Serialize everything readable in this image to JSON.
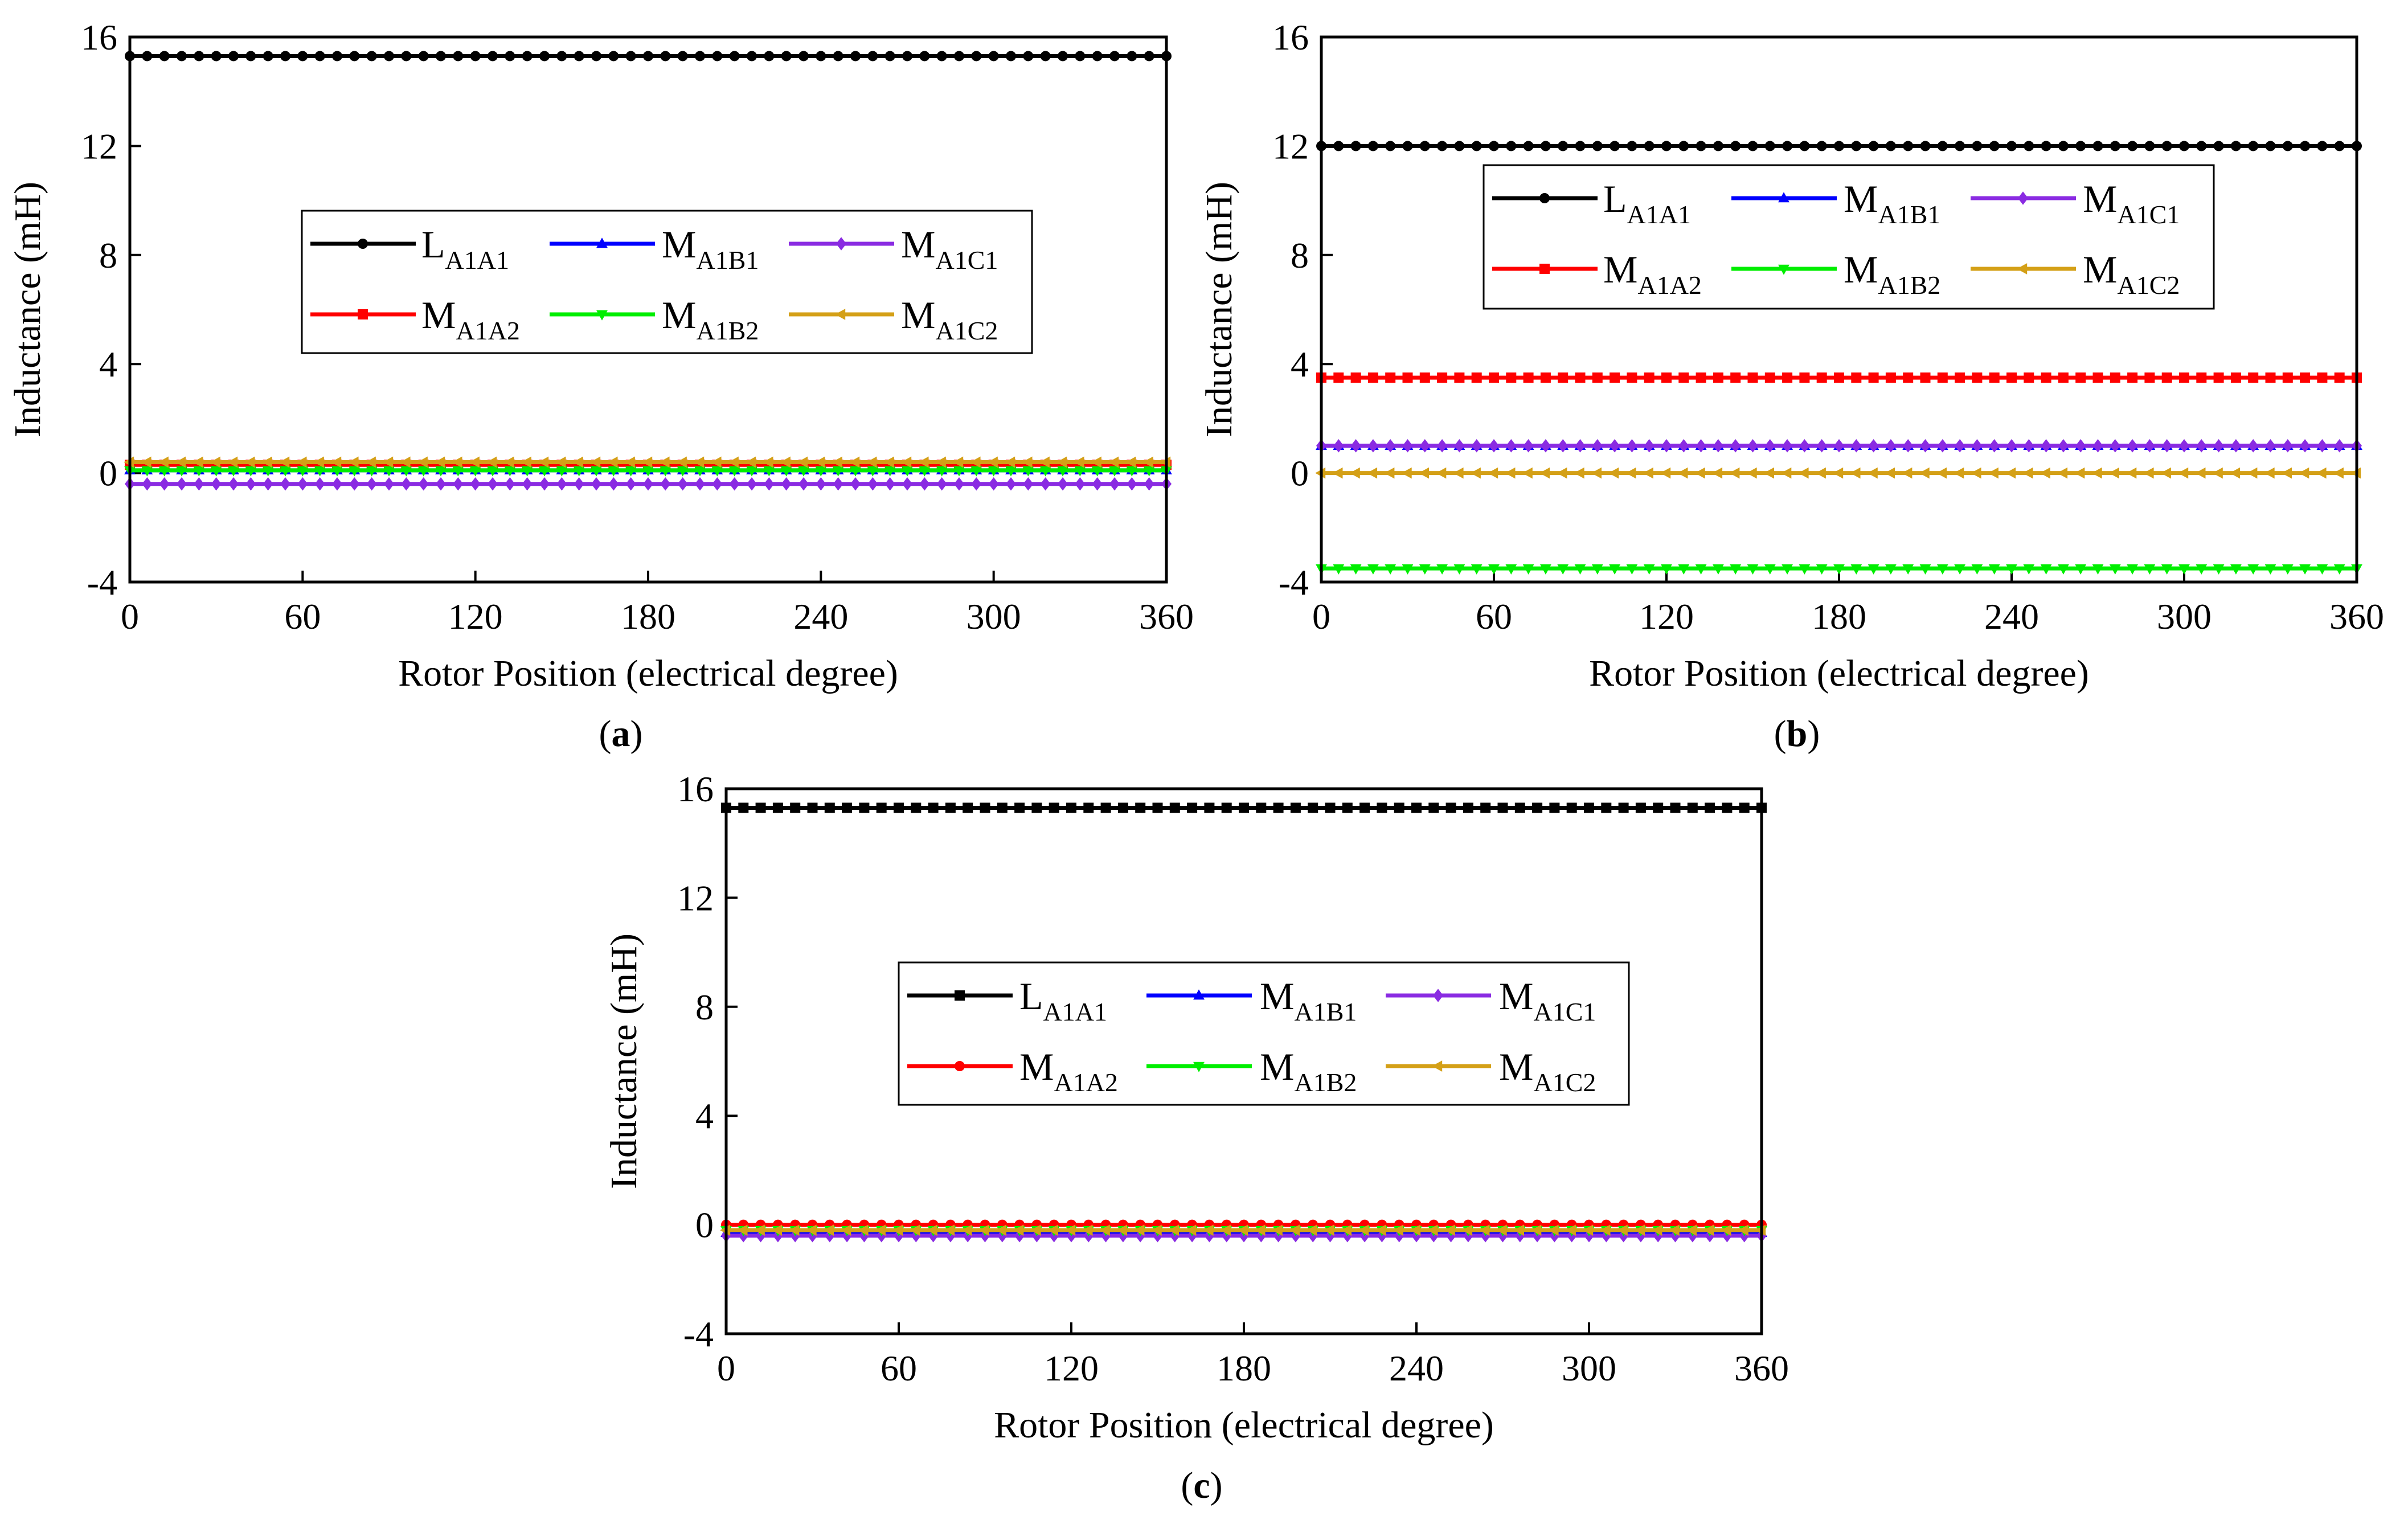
{
  "chart_data": [
    {
      "type": "line",
      "panel_label": "a",
      "xlabel": "Rotor Position (electrical degree)",
      "ylabel": "Inductance (mH)",
      "xlim": [
        0,
        360
      ],
      "ylim": [
        -4,
        16
      ],
      "xticks": [
        0,
        60,
        120,
        180,
        240,
        300,
        360
      ],
      "yticks": [
        -4,
        0,
        4,
        8,
        12,
        16
      ],
      "grid": false,
      "legend_position": "center",
      "x": [
        0,
        360
      ],
      "series": [
        {
          "name": "L",
          "subscript": "A1A1",
          "color": "#000000",
          "marker": "circle",
          "values": [
            15.3,
            15.3
          ]
        },
        {
          "name": "M",
          "subscript": "A1B1",
          "color": "#0000ff",
          "marker": "triangle-up",
          "values": [
            0.1,
            0.1
          ]
        },
        {
          "name": "M",
          "subscript": "A1C1",
          "color": "#8a2be2",
          "marker": "diamond",
          "values": [
            -0.4,
            -0.4
          ]
        },
        {
          "name": "M",
          "subscript": "A1A2",
          "color": "#ff0000",
          "marker": "square",
          "values": [
            0.3,
            0.3
          ]
        },
        {
          "name": "M",
          "subscript": "A1B2",
          "color": "#00ee00",
          "marker": "triangle-down",
          "values": [
            0.1,
            0.1
          ]
        },
        {
          "name": "M",
          "subscript": "A1C2",
          "color": "#d4a017",
          "marker": "triangle-left",
          "values": [
            0.4,
            0.4
          ]
        }
      ]
    },
    {
      "type": "line",
      "panel_label": "b",
      "xlabel": "Rotor Position (electrical degree)",
      "ylabel": "Inductance (mH)",
      "xlim": [
        0,
        360
      ],
      "ylim": [
        -4,
        16
      ],
      "xticks": [
        0,
        60,
        120,
        180,
        240,
        300,
        360
      ],
      "yticks": [
        -4,
        0,
        4,
        8,
        12,
        16
      ],
      "grid": false,
      "legend_position": "top-center",
      "x": [
        0,
        360
      ],
      "series": [
        {
          "name": "L",
          "subscript": "A1A1",
          "color": "#000000",
          "marker": "circle",
          "values": [
            12.0,
            12.0
          ]
        },
        {
          "name": "M",
          "subscript": "A1B1",
          "color": "#0000ff",
          "marker": "triangle-up",
          "values": [
            1.0,
            1.0
          ]
        },
        {
          "name": "M",
          "subscript": "A1C1",
          "color": "#8a2be2",
          "marker": "diamond",
          "values": [
            1.0,
            1.0
          ]
        },
        {
          "name": "M",
          "subscript": "A1A2",
          "color": "#ff0000",
          "marker": "square",
          "values": [
            3.5,
            3.5
          ]
        },
        {
          "name": "M",
          "subscript": "A1B2",
          "color": "#00ee00",
          "marker": "triangle-down",
          "values": [
            -3.5,
            -3.5
          ]
        },
        {
          "name": "M",
          "subscript": "A1C2",
          "color": "#d4a017",
          "marker": "triangle-left",
          "values": [
            0.0,
            0.0
          ]
        }
      ]
    },
    {
      "type": "line",
      "panel_label": "c",
      "xlabel": "Rotor Position (electrical degree)",
      "ylabel": "Inductance (mH)",
      "xlim": [
        0,
        360
      ],
      "ylim": [
        -4,
        16
      ],
      "xticks": [
        0,
        60,
        120,
        180,
        240,
        300,
        360
      ],
      "yticks": [
        -4,
        0,
        4,
        8,
        12,
        16
      ],
      "grid": false,
      "legend_position": "center",
      "x": [
        0,
        360
      ],
      "series": [
        {
          "name": "L",
          "subscript": "A1A1",
          "color": "#000000",
          "marker": "square",
          "values": [
            15.3,
            15.3
          ]
        },
        {
          "name": "M",
          "subscript": "A1B1",
          "color": "#0000ff",
          "marker": "triangle-up",
          "values": [
            -0.3,
            -0.3
          ]
        },
        {
          "name": "M",
          "subscript": "A1C1",
          "color": "#8a2be2",
          "marker": "diamond",
          "values": [
            -0.4,
            -0.4
          ]
        },
        {
          "name": "M",
          "subscript": "A1A2",
          "color": "#ff0000",
          "marker": "circle",
          "values": [
            0.0,
            0.0
          ]
        },
        {
          "name": "M",
          "subscript": "A1B2",
          "color": "#00ee00",
          "marker": "triangle-down",
          "values": [
            -0.2,
            -0.2
          ]
        },
        {
          "name": "M",
          "subscript": "A1C2",
          "color": "#d4a017",
          "marker": "triangle-left",
          "values": [
            -0.2,
            -0.2
          ]
        }
      ]
    }
  ]
}
